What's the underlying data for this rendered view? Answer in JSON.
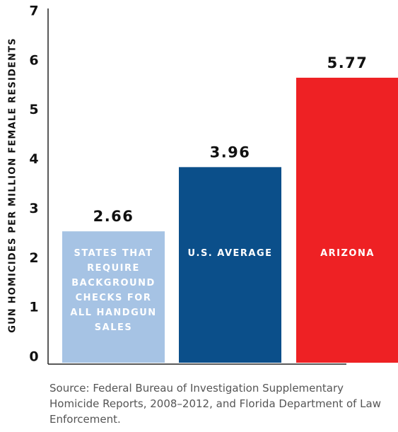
{
  "chart_data": {
    "type": "bar",
    "y_label": "GUN HOMICIDES PER MILLION FEMALE RESIDENTS",
    "categories": [
      "STATES THAT REQUIRE BACKGROUND CHECKS FOR ALL HANDGUN SALES",
      "U.S. AVERAGE",
      "ARIZONA"
    ],
    "values": [
      2.66,
      3.96,
      5.77
    ],
    "colors": [
      "#a6c3e4",
      "#0b4f8a",
      "#ee2124"
    ],
    "ylim": [
      0,
      7
    ],
    "yticks": [
      0,
      1,
      2,
      3,
      4,
      5,
      6,
      7
    ],
    "grid": false,
    "source": "Source: Federal Bureau of Investigation Supplementary Homicide Reports, 2008–2012, and Florida Department of Law Enforcement."
  }
}
